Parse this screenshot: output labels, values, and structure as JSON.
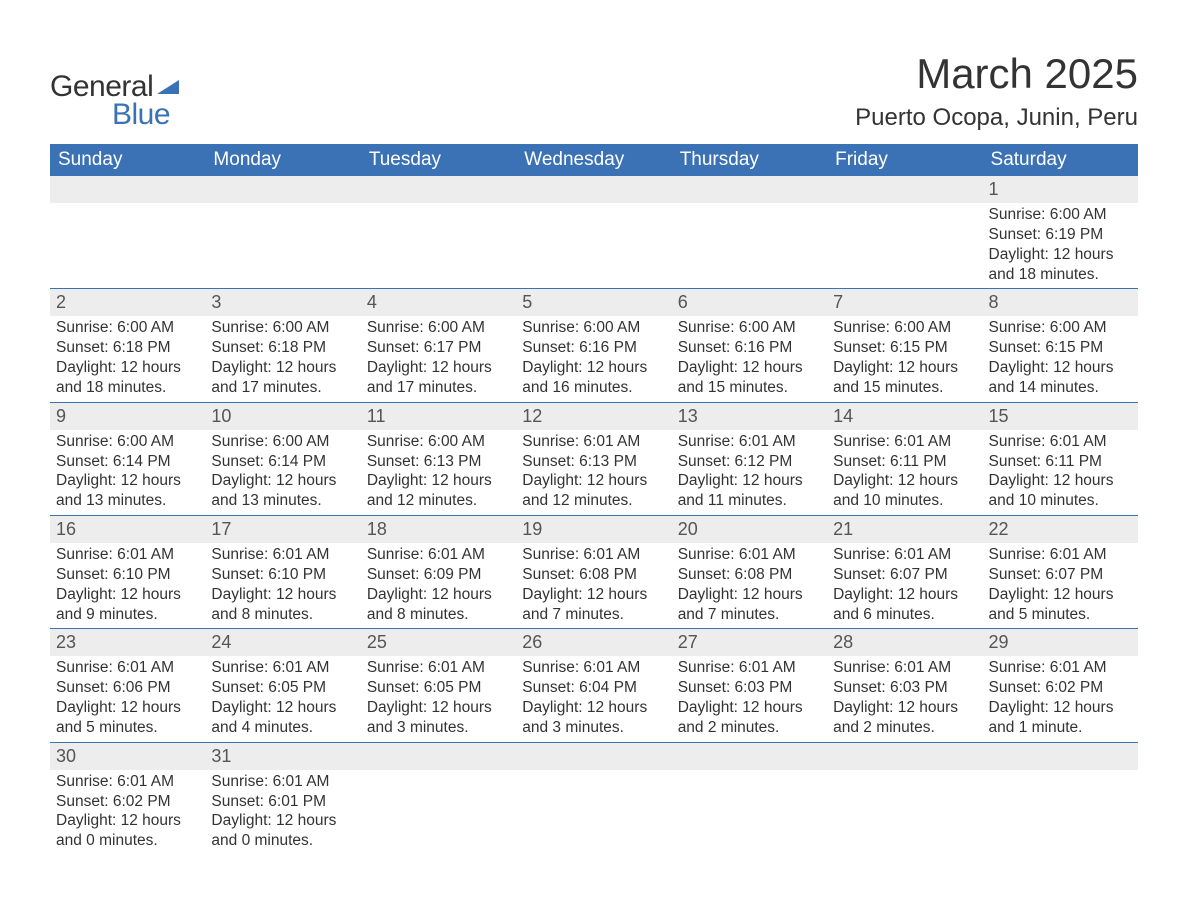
{
  "logo": {
    "text_general": "General",
    "text_blue": "Blue",
    "flag_color": "#3a72b5"
  },
  "title": "March 2025",
  "location": "Puerto Ocopa, Junin, Peru",
  "colors": {
    "header_bg": "#3a72b5",
    "header_text": "#ffffff",
    "daynum_bg": "#ededed",
    "row_border": "#3a72b5",
    "body_text": "#333333"
  },
  "day_headers": [
    "Sunday",
    "Monday",
    "Tuesday",
    "Wednesday",
    "Thursday",
    "Friday",
    "Saturday"
  ],
  "weeks": [
    [
      null,
      null,
      null,
      null,
      null,
      null,
      {
        "n": "1",
        "sunrise": "Sunrise: 6:00 AM",
        "sunset": "Sunset: 6:19 PM",
        "daylight": "Daylight: 12 hours and 18 minutes."
      }
    ],
    [
      {
        "n": "2",
        "sunrise": "Sunrise: 6:00 AM",
        "sunset": "Sunset: 6:18 PM",
        "daylight": "Daylight: 12 hours and 18 minutes."
      },
      {
        "n": "3",
        "sunrise": "Sunrise: 6:00 AM",
        "sunset": "Sunset: 6:18 PM",
        "daylight": "Daylight: 12 hours and 17 minutes."
      },
      {
        "n": "4",
        "sunrise": "Sunrise: 6:00 AM",
        "sunset": "Sunset: 6:17 PM",
        "daylight": "Daylight: 12 hours and 17 minutes."
      },
      {
        "n": "5",
        "sunrise": "Sunrise: 6:00 AM",
        "sunset": "Sunset: 6:16 PM",
        "daylight": "Daylight: 12 hours and 16 minutes."
      },
      {
        "n": "6",
        "sunrise": "Sunrise: 6:00 AM",
        "sunset": "Sunset: 6:16 PM",
        "daylight": "Daylight: 12 hours and 15 minutes."
      },
      {
        "n": "7",
        "sunrise": "Sunrise: 6:00 AM",
        "sunset": "Sunset: 6:15 PM",
        "daylight": "Daylight: 12 hours and 15 minutes."
      },
      {
        "n": "8",
        "sunrise": "Sunrise: 6:00 AM",
        "sunset": "Sunset: 6:15 PM",
        "daylight": "Daylight: 12 hours and 14 minutes."
      }
    ],
    [
      {
        "n": "9",
        "sunrise": "Sunrise: 6:00 AM",
        "sunset": "Sunset: 6:14 PM",
        "daylight": "Daylight: 12 hours and 13 minutes."
      },
      {
        "n": "10",
        "sunrise": "Sunrise: 6:00 AM",
        "sunset": "Sunset: 6:14 PM",
        "daylight": "Daylight: 12 hours and 13 minutes."
      },
      {
        "n": "11",
        "sunrise": "Sunrise: 6:00 AM",
        "sunset": "Sunset: 6:13 PM",
        "daylight": "Daylight: 12 hours and 12 minutes."
      },
      {
        "n": "12",
        "sunrise": "Sunrise: 6:01 AM",
        "sunset": "Sunset: 6:13 PM",
        "daylight": "Daylight: 12 hours and 12 minutes."
      },
      {
        "n": "13",
        "sunrise": "Sunrise: 6:01 AM",
        "sunset": "Sunset: 6:12 PM",
        "daylight": "Daylight: 12 hours and 11 minutes."
      },
      {
        "n": "14",
        "sunrise": "Sunrise: 6:01 AM",
        "sunset": "Sunset: 6:11 PM",
        "daylight": "Daylight: 12 hours and 10 minutes."
      },
      {
        "n": "15",
        "sunrise": "Sunrise: 6:01 AM",
        "sunset": "Sunset: 6:11 PM",
        "daylight": "Daylight: 12 hours and 10 minutes."
      }
    ],
    [
      {
        "n": "16",
        "sunrise": "Sunrise: 6:01 AM",
        "sunset": "Sunset: 6:10 PM",
        "daylight": "Daylight: 12 hours and 9 minutes."
      },
      {
        "n": "17",
        "sunrise": "Sunrise: 6:01 AM",
        "sunset": "Sunset: 6:10 PM",
        "daylight": "Daylight: 12 hours and 8 minutes."
      },
      {
        "n": "18",
        "sunrise": "Sunrise: 6:01 AM",
        "sunset": "Sunset: 6:09 PM",
        "daylight": "Daylight: 12 hours and 8 minutes."
      },
      {
        "n": "19",
        "sunrise": "Sunrise: 6:01 AM",
        "sunset": "Sunset: 6:08 PM",
        "daylight": "Daylight: 12 hours and 7 minutes."
      },
      {
        "n": "20",
        "sunrise": "Sunrise: 6:01 AM",
        "sunset": "Sunset: 6:08 PM",
        "daylight": "Daylight: 12 hours and 7 minutes."
      },
      {
        "n": "21",
        "sunrise": "Sunrise: 6:01 AM",
        "sunset": "Sunset: 6:07 PM",
        "daylight": "Daylight: 12 hours and 6 minutes."
      },
      {
        "n": "22",
        "sunrise": "Sunrise: 6:01 AM",
        "sunset": "Sunset: 6:07 PM",
        "daylight": "Daylight: 12 hours and 5 minutes."
      }
    ],
    [
      {
        "n": "23",
        "sunrise": "Sunrise: 6:01 AM",
        "sunset": "Sunset: 6:06 PM",
        "daylight": "Daylight: 12 hours and 5 minutes."
      },
      {
        "n": "24",
        "sunrise": "Sunrise: 6:01 AM",
        "sunset": "Sunset: 6:05 PM",
        "daylight": "Daylight: 12 hours and 4 minutes."
      },
      {
        "n": "25",
        "sunrise": "Sunrise: 6:01 AM",
        "sunset": "Sunset: 6:05 PM",
        "daylight": "Daylight: 12 hours and 3 minutes."
      },
      {
        "n": "26",
        "sunrise": "Sunrise: 6:01 AM",
        "sunset": "Sunset: 6:04 PM",
        "daylight": "Daylight: 12 hours and 3 minutes."
      },
      {
        "n": "27",
        "sunrise": "Sunrise: 6:01 AM",
        "sunset": "Sunset: 6:03 PM",
        "daylight": "Daylight: 12 hours and 2 minutes."
      },
      {
        "n": "28",
        "sunrise": "Sunrise: 6:01 AM",
        "sunset": "Sunset: 6:03 PM",
        "daylight": "Daylight: 12 hours and 2 minutes."
      },
      {
        "n": "29",
        "sunrise": "Sunrise: 6:01 AM",
        "sunset": "Sunset: 6:02 PM",
        "daylight": "Daylight: 12 hours and 1 minute."
      }
    ],
    [
      {
        "n": "30",
        "sunrise": "Sunrise: 6:01 AM",
        "sunset": "Sunset: 6:02 PM",
        "daylight": "Daylight: 12 hours and 0 minutes."
      },
      {
        "n": "31",
        "sunrise": "Sunrise: 6:01 AM",
        "sunset": "Sunset: 6:01 PM",
        "daylight": "Daylight: 12 hours and 0 minutes."
      },
      null,
      null,
      null,
      null,
      null
    ]
  ]
}
